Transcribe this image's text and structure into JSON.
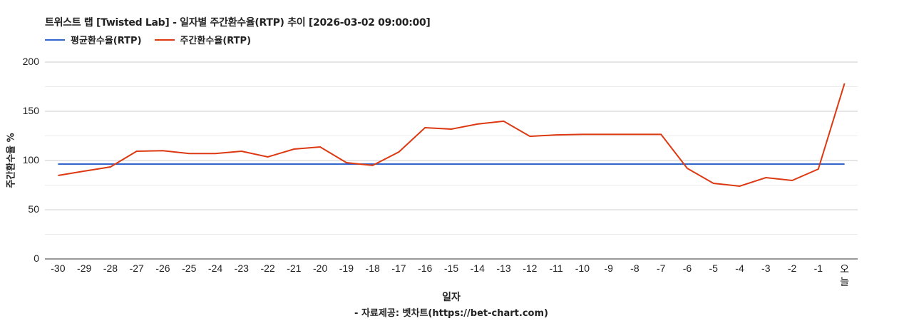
{
  "title": "트위스트 랩 [Twisted Lab] - 일자별 주간환수율(RTP) 추이 [2026-03-02 09:00:00]",
  "legend": [
    {
      "label": "평균환수율(RTP)",
      "color": "#3366cc"
    },
    {
      "label": "주간환수율(RTP)",
      "color": "#dc3912"
    }
  ],
  "y_axis_label": "주간환수율 %",
  "x_axis_label": "일자",
  "source": "- 자료제공: 벳차트(https://bet-chart.com)",
  "chart_data": {
    "type": "line",
    "title": "트위스트 랩 [Twisted Lab] - 일자별 주간환수율(RTP) 추이 [2026-03-02 09:00:00]",
    "xlabel": "일자",
    "ylabel": "주간환수율 %",
    "ylim": [
      0,
      200
    ],
    "yticks": [
      0,
      50,
      100,
      150,
      200
    ],
    "grid": true,
    "legend_position": "top",
    "categories": [
      "-30",
      "-29",
      "-28",
      "-27",
      "-26",
      "-25",
      "-24",
      "-23",
      "-22",
      "-21",
      "-20",
      "-19",
      "-18",
      "-17",
      "-16",
      "-15",
      "-14",
      "-13",
      "-12",
      "-11",
      "-10",
      "-9",
      "-8",
      "-7",
      "-6",
      "-5",
      "-4",
      "-3",
      "-2",
      "-1",
      "오늘"
    ],
    "series": [
      {
        "name": "평균환수율(RTP)",
        "color": "#3366cc",
        "values": [
          96.4,
          96.4,
          96.4,
          96.4,
          96.4,
          96.4,
          96.4,
          96.4,
          96.4,
          96.4,
          96.4,
          96.4,
          96.4,
          96.4,
          96.4,
          96.4,
          96.4,
          96.4,
          96.4,
          96.4,
          96.4,
          96.4,
          96.4,
          96.4,
          96.4,
          96.4,
          96.4,
          96.4,
          96.4,
          96.4,
          96.4
        ]
      },
      {
        "name": "주간환수율(RTP)",
        "color": "#dc3912",
        "values": [
          84.8,
          89.2,
          93.5,
          109.4,
          110.0,
          107.0,
          107.0,
          109.4,
          103.6,
          111.6,
          113.8,
          97.8,
          95.0,
          108.7,
          133.3,
          131.9,
          137.0,
          139.9,
          124.6,
          126.0,
          126.5,
          126.5,
          126.5,
          126.5,
          92.0,
          76.8,
          73.9,
          82.6,
          79.7,
          91.3,
          178.3
        ]
      }
    ]
  }
}
